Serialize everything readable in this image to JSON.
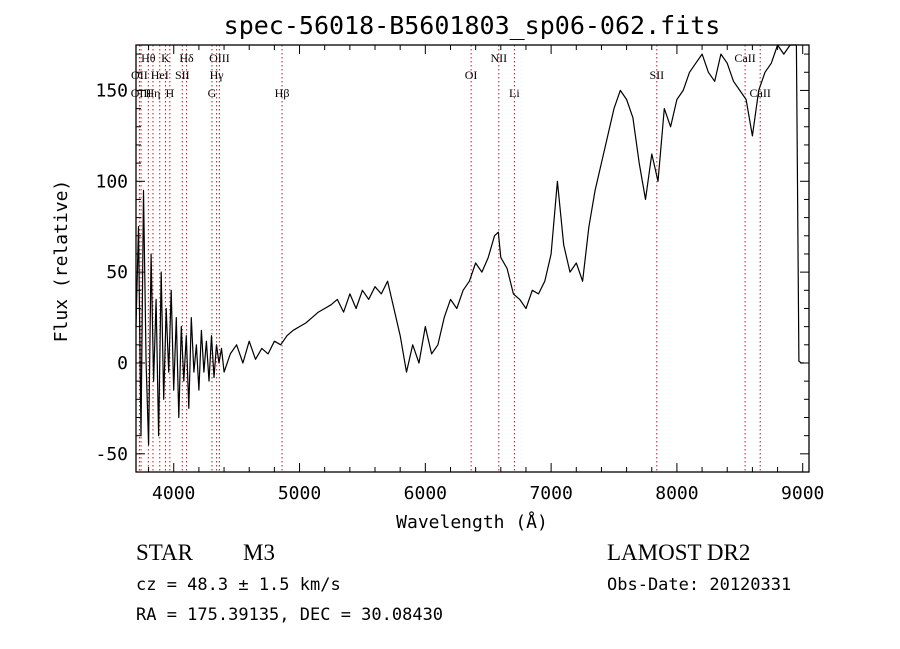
{
  "chart_data": {
    "type": "line",
    "title": "spec-56018-B5601803_sp06-062.fits",
    "xlabel": "Wavelength (Å)",
    "ylabel": "Flux (relative)",
    "xlim": [
      3700,
      9050
    ],
    "ylim": [
      -60,
      175
    ],
    "x_ticks": [
      4000,
      5000,
      6000,
      7000,
      8000,
      9000
    ],
    "y_ticks": [
      -50,
      0,
      50,
      100,
      150
    ],
    "grid": false,
    "series": [
      {
        "color": "#000000",
        "x": [
          3700,
          3720,
          3740,
          3760,
          3780,
          3800,
          3820,
          3840,
          3860,
          3880,
          3900,
          3920,
          3940,
          3960,
          3980,
          4000,
          4020,
          4040,
          4060,
          4080,
          4100,
          4120,
          4140,
          4160,
          4180,
          4200,
          4220,
          4240,
          4260,
          4280,
          4300,
          4320,
          4340,
          4360,
          4380,
          4400,
          4450,
          4500,
          4550,
          4600,
          4650,
          4700,
          4750,
          4800,
          4850,
          4900,
          4950,
          5000,
          5050,
          5100,
          5150,
          5200,
          5250,
          5300,
          5350,
          5400,
          5450,
          5500,
          5550,
          5600,
          5650,
          5700,
          5750,
          5800,
          5850,
          5900,
          5950,
          6000,
          6050,
          6100,
          6150,
          6200,
          6250,
          6300,
          6350,
          6400,
          6450,
          6500,
          6550,
          6580,
          6600,
          6650,
          6700,
          6750,
          6800,
          6850,
          6900,
          6950,
          7000,
          7050,
          7100,
          7150,
          7200,
          7250,
          7300,
          7350,
          7400,
          7450,
          7500,
          7550,
          7600,
          7650,
          7700,
          7750,
          7800,
          7850,
          7900,
          7950,
          8000,
          8050,
          8100,
          8150,
          8200,
          8250,
          8300,
          8350,
          8400,
          8450,
          8500,
          8550,
          8600,
          8650,
          8700,
          8750,
          8800,
          8850,
          8900,
          8950,
          8970,
          8990,
          9000,
          9010
        ],
        "y": [
          20,
          75,
          -40,
          95,
          0,
          -45,
          60,
          -10,
          35,
          -40,
          50,
          -20,
          30,
          -5,
          40,
          -15,
          25,
          -30,
          20,
          -10,
          15,
          -25,
          25,
          -5,
          10,
          -15,
          18,
          -5,
          12,
          -10,
          15,
          -8,
          10,
          0,
          8,
          -5,
          5,
          10,
          0,
          12,
          2,
          8,
          5,
          12,
          10,
          15,
          18,
          20,
          22,
          25,
          28,
          30,
          32,
          35,
          28,
          38,
          30,
          40,
          35,
          42,
          38,
          45,
          30,
          15,
          -5,
          10,
          0,
          20,
          5,
          10,
          25,
          35,
          30,
          40,
          45,
          55,
          50,
          58,
          70,
          72,
          58,
          52,
          38,
          35,
          30,
          40,
          38,
          45,
          60,
          100,
          65,
          50,
          55,
          45,
          75,
          95,
          110,
          125,
          140,
          150,
          145,
          135,
          110,
          90,
          115,
          100,
          140,
          130,
          145,
          150,
          160,
          165,
          170,
          160,
          155,
          170,
          165,
          155,
          150,
          145,
          125,
          150,
          160,
          165,
          175,
          170,
          180,
          175,
          1,
          0,
          0,
          0
        ]
      }
    ],
    "annotations": [
      {
        "label": "Hθ",
        "x": 3798,
        "row": 1
      },
      {
        "label": "OII",
        "x": 3727,
        "row": 2
      },
      {
        "label": "OIII",
        "x": 3740,
        "row": 3
      },
      {
        "label": "K",
        "x": 3934,
        "row": 1
      },
      {
        "label": "HeI",
        "x": 3889,
        "row": 2
      },
      {
        "label": "Hη",
        "x": 3835,
        "row": 3
      },
      {
        "label": "Hδ",
        "x": 4102,
        "row": 1
      },
      {
        "label": "SII",
        "x": 4068,
        "row": 2
      },
      {
        "label": "H",
        "x": 3969,
        "row": 3
      },
      {
        "label": "OIII",
        "x": 4363,
        "row": 1
      },
      {
        "label": "Hγ",
        "x": 4341,
        "row": 2
      },
      {
        "label": "G",
        "x": 4304,
        "row": 3
      },
      {
        "label": "Hβ",
        "x": 4861,
        "row": 3
      },
      {
        "label": "OI",
        "x": 6364,
        "row": 2
      },
      {
        "label": "NII",
        "x": 6584,
        "row": 1
      },
      {
        "label": "Li",
        "x": 6708,
        "row": 3
      },
      {
        "label": "SII",
        "x": 7840,
        "row": 2
      },
      {
        "label": "CaII",
        "x": 8542,
        "row": 1
      },
      {
        "label": "CaII",
        "x": 8662,
        "row": 3
      }
    ]
  },
  "footer": {
    "object_class": "STAR",
    "subclass": "M3",
    "survey": "LAMOST DR2",
    "cz": "cz = 48.3 ± 1.5 km/s",
    "obs_date": "Obs-Date: 20120331",
    "radec": "RA = 175.39135, DEC =  30.08430"
  }
}
